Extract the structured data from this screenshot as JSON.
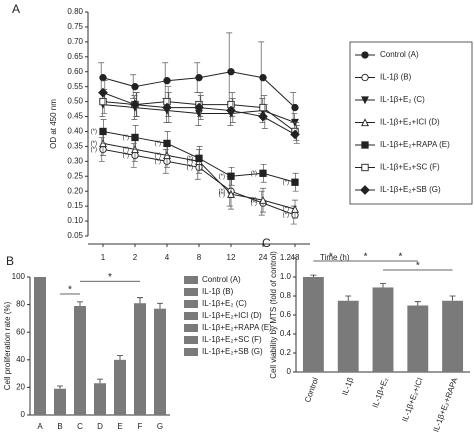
{
  "chart_data": [
    {
      "type": "line",
      "panel_label": "A",
      "ylabel": "OD at 450 nm",
      "xlabel": "Time (h)",
      "categories": [
        "1",
        "2",
        "4",
        "8",
        "12",
        "24",
        "48"
      ],
      "ylim": [
        0.05,
        0.8
      ],
      "yticks": [
        0.05,
        {
          "value": 0.1,
          "label": "0.10"
        },
        0.15,
        {
          "value": 0.2,
          "label": "0.20"
        },
        0.25,
        {
          "value": 0.3,
          "label": "0.30"
        },
        0.35,
        {
          "value": 0.4,
          "label": "0.40"
        },
        0.45,
        {
          "value": 0.5,
          "label": "0.50"
        },
        0.55,
        {
          "value": 0.6,
          "label": "0.60"
        },
        0.65,
        {
          "value": 0.7,
          "label": "0.70"
        },
        0.75,
        {
          "value": 0.8,
          "label": "0.80"
        }
      ],
      "series": [
        {
          "name": "Control (A)",
          "color": "#222",
          "marker": "circle",
          "values": [
            0.58,
            0.55,
            0.57,
            0.58,
            0.6,
            0.58,
            0.48
          ],
          "errors": [
            0.05,
            0.04,
            0.06,
            0.05,
            0.13,
            0.12,
            0.05
          ]
        },
        {
          "name": "IL-1β (B)",
          "color": "#222",
          "marker": "circle-open",
          "values": [
            0.34,
            0.32,
            0.3,
            0.28,
            0.2,
            0.16,
            0.12
          ],
          "errors": [
            0.04,
            0.04,
            0.04,
            0.04,
            0.05,
            0.04,
            0.03
          ],
          "annotations": [
            "(*)",
            "(*)",
            "(*)",
            "(*)",
            "(*)",
            "(*)",
            "(*)"
          ]
        },
        {
          "name": "IL-1β+E₂ (C)",
          "color": "#222",
          "marker": "triangle-down",
          "values": [
            0.49,
            0.48,
            0.47,
            0.46,
            0.46,
            0.47,
            0.43
          ],
          "errors": [
            0.04,
            0.04,
            0.04,
            0.04,
            0.04,
            0.04,
            0.03
          ]
        },
        {
          "name": "IL-1β+E₂+ICI (D)",
          "color": "#222",
          "marker": "triangle-open",
          "values": [
            0.36,
            0.34,
            0.32,
            0.3,
            0.19,
            0.17,
            0.14
          ],
          "errors": [
            0.04,
            0.04,
            0.04,
            0.04,
            0.05,
            0.04,
            0.03
          ],
          "annotations": [
            "(*)",
            "(*)",
            "(*)",
            "(*)",
            "(*)",
            "(*)",
            "(*)"
          ]
        },
        {
          "name": "IL-1β+E₂+RAPA (E)",
          "color": "#222",
          "marker": "square",
          "values": [
            0.4,
            0.38,
            0.36,
            0.31,
            0.25,
            0.26,
            0.23
          ],
          "errors": [
            0.04,
            0.04,
            0.04,
            0.04,
            0.03,
            0.03,
            0.03
          ],
          "annotations": [
            "(*)",
            "(*)",
            "(*)",
            "(*)",
            "(*)",
            "(*)",
            "(*)"
          ]
        },
        {
          "name": "IL-1β+E₂+SC (F)",
          "color": "#222",
          "marker": "square-open",
          "values": [
            0.5,
            0.49,
            0.5,
            0.49,
            0.49,
            0.48,
            0.4
          ],
          "errors": [
            0.04,
            0.04,
            0.05,
            0.04,
            0.04,
            0.04,
            0.03
          ]
        },
        {
          "name": "IL-1β+E₂+SB (G)",
          "color": "#222",
          "marker": "diamond",
          "values": [
            0.53,
            0.49,
            0.48,
            0.48,
            0.47,
            0.45,
            0.39
          ],
          "errors": [
            0.04,
            0.04,
            0.05,
            0.04,
            0.04,
            0.04,
            0.03
          ]
        }
      ]
    },
    {
      "type": "bar",
      "panel_label": "B",
      "ylabel": "Cell proliferation rate (%)",
      "color": "#7a7a7a",
      "categories": [
        "A",
        "B",
        "C",
        "D",
        "E",
        "F",
        "G"
      ],
      "values": [
        100,
        19,
        79,
        23,
        40,
        81,
        77
      ],
      "errors": [
        0,
        2,
        3,
        3,
        3,
        4,
        4
      ],
      "ylim": [
        0,
        100
      ],
      "yticks": [
        0,
        20,
        40,
        60,
        80,
        100
      ],
      "legend": [
        "Control (A)",
        "IL-1β (B)",
        "IL-1β+E₂ (C)",
        "IL-1β+E₂+ICI (D)",
        "IL-1β+E₂+RAPA (E)",
        "IL-1β+E₂+SC (F)",
        "IL-1β+E₂+SB (G)"
      ],
      "comparisons": [
        {
          "from": "B",
          "to": "C",
          "label": "*"
        },
        {
          "from": "C",
          "to": "F",
          "label": "*"
        }
      ]
    },
    {
      "type": "bar",
      "panel_label": "C",
      "ylabel": "Cell viability by MTS (fold of control)",
      "color": "#7a7a7a",
      "rotate_labels": true,
      "categories": [
        "Control",
        "IL-1β",
        "IL-1β+E₂",
        "IL-1β+E₂+ICI",
        "IL-1β+E₂+RAPA"
      ],
      "values": [
        1.0,
        0.75,
        0.89,
        0.7,
        0.75
      ],
      "errors": [
        0.02,
        0.05,
        0.04,
        0.04,
        0.05
      ],
      "ylim": [
        0,
        1.2
      ],
      "yticks": [
        0,
        0.2,
        0.4,
        0.6,
        0.8,
        {
          "value": 1,
          "label": "1.0"
        },
        1.2
      ],
      "comparisons": [
        {
          "from": "Control",
          "to": "IL-1β",
          "label": "*"
        },
        {
          "from": "IL-1β",
          "to": "IL-1β+E₂",
          "label": "*"
        },
        {
          "from": "IL-1β+E₂",
          "to": "IL-1β+E₂+ICI",
          "label": "*"
        },
        {
          "from": "IL-1β+E₂",
          "to": "IL-1β+E₂+RAPA",
          "label": "*"
        }
      ]
    }
  ]
}
